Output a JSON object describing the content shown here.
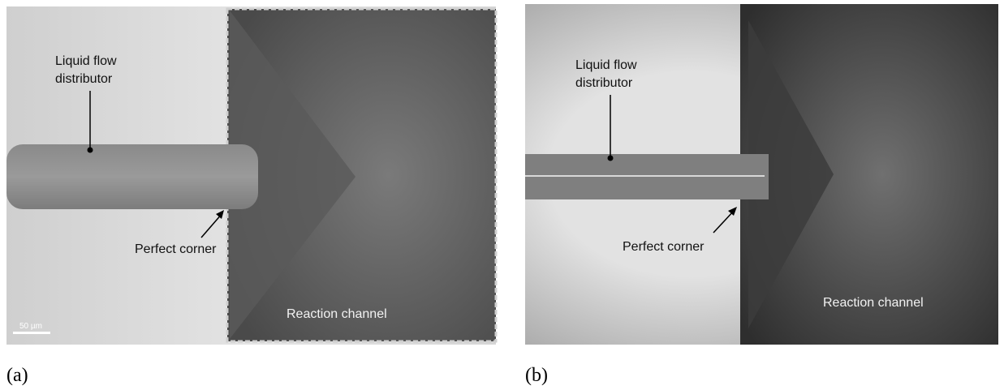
{
  "panels": [
    {
      "caption": "(a)",
      "distributor_label": [
        "Liquid flow",
        "distributor"
      ],
      "corner_label": "Perfect corner",
      "channel_label": "Reaction channel",
      "scale_bar": "50 µm"
    },
    {
      "caption": "(b)",
      "distributor_label": [
        "Liquid flow",
        "distributor"
      ],
      "corner_label": "Perfect corner",
      "channel_label": "Reaction channel"
    }
  ]
}
